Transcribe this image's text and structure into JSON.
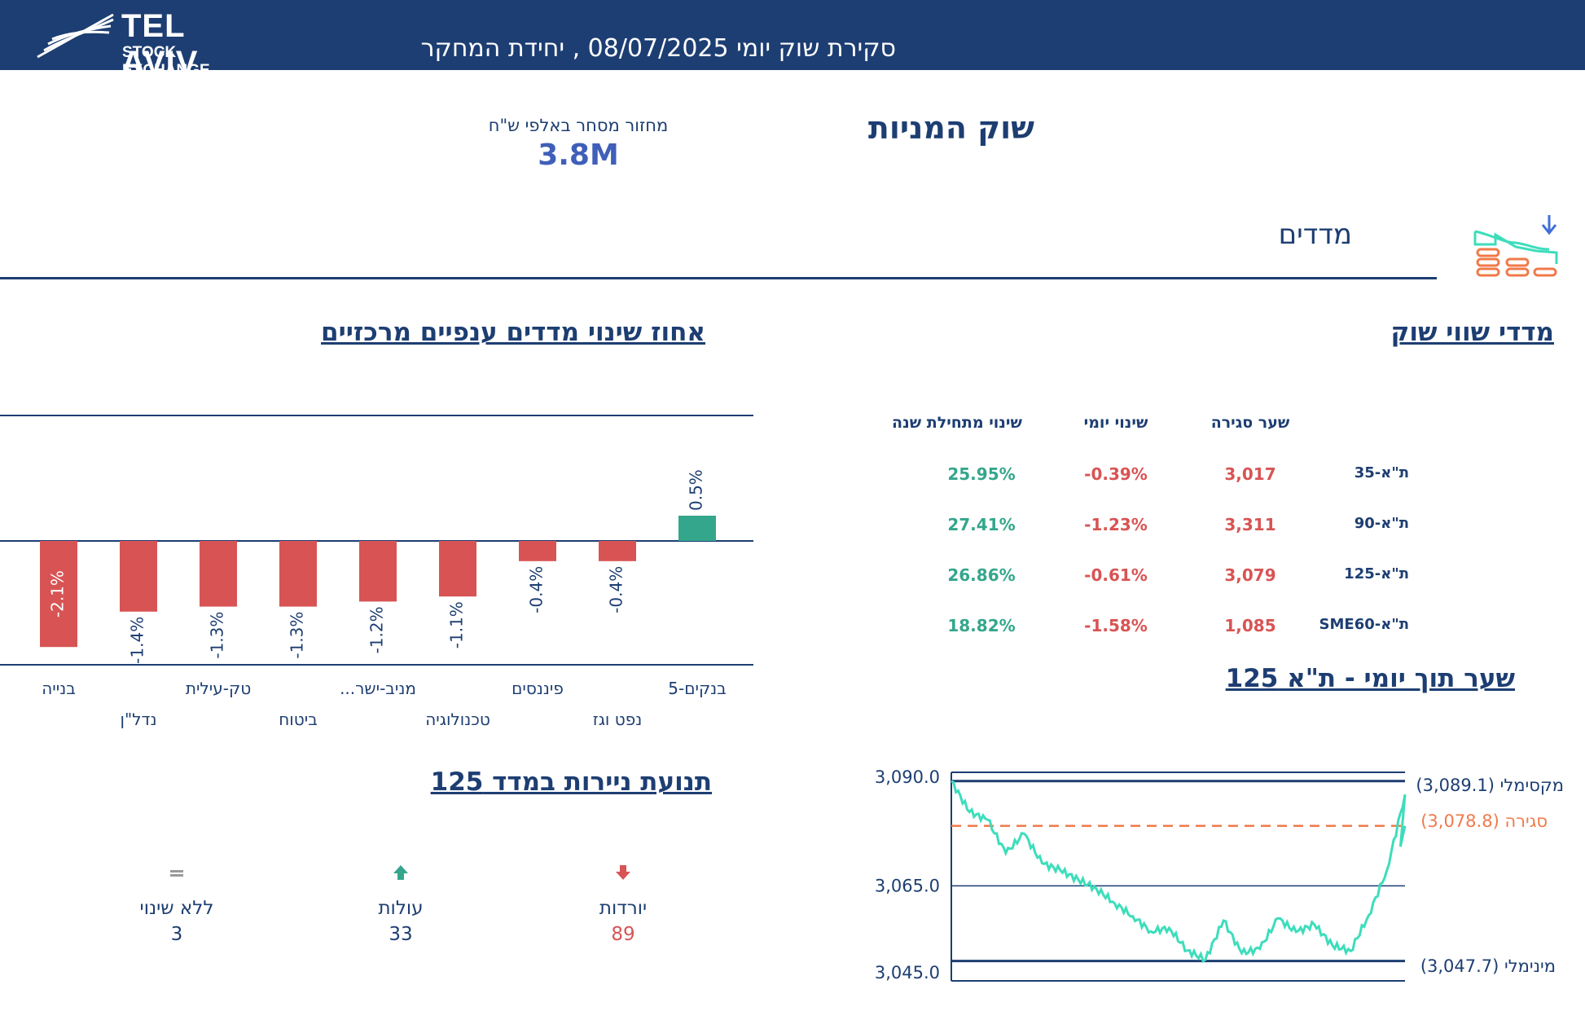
{
  "header": {
    "logo_line1": "TEL AVIV",
    "logo_line2": "STOCK EXCHANGE",
    "title": "סקירת שוק יומי 08/07/2025 , יחידת המחקר"
  },
  "market": {
    "title": "שוק המניות",
    "turnover_label": "מחזור מסחר באלפי ש\"ח",
    "turnover_value": "3.8M"
  },
  "indices_section": {
    "label": "מדדים"
  },
  "market_cap": {
    "title": "מדדי שווי שוק",
    "columns": [
      "שער סגירה",
      "שינוי יומי",
      "שינוי מתחילת שנה"
    ],
    "rows": [
      {
        "name": "ת\"א-35",
        "close": "3,017",
        "daily": "-0.39%",
        "ytd": "25.95%"
      },
      {
        "name": "ת\"א-90",
        "close": "3,311",
        "daily": "-1.23%",
        "ytd": "27.41%"
      },
      {
        "name": "ת\"א-125",
        "close": "3,079",
        "daily": "-0.61%",
        "ytd": "26.86%"
      },
      {
        "name": "ת\"א-SME60",
        "close": "1,085",
        "daily": "-1.58%",
        "ytd": "18.82%"
      }
    ]
  },
  "sector_chart": {
    "title": "אחוז שינוי מדדים ענפיים מרכזיים"
  },
  "intraday": {
    "title": "שער תוך יומי - ת\"א 125",
    "max_label": "מקסימלי (3,089.1)",
    "close_label": "סגירה (3,078.8)",
    "min_label": "מינימלי (3,047.7)"
  },
  "movement": {
    "title": "תנועת ניירות במדד 125",
    "down_label": "יורדות",
    "down_value": "89",
    "up_label": "עולות",
    "up_value": "33",
    "flat_label": "ללא שינוי",
    "flat_value": "3"
  },
  "colors": {
    "brand": "#1d3e72",
    "positive": "#34a68c",
    "negative": "#d85454",
    "close_line": "#f07a4a",
    "intraday_line": "#3dddbb"
  },
  "chart_data": [
    {
      "type": "bar",
      "title": "אחוז שינוי מדדים ענפיים מרכזיים",
      "categories": [
        "בנקים-5",
        "נפט וגז",
        "פיננסים",
        "טכנולוגיה",
        "מניב-ישר...",
        "ביטוח",
        "טק-עילית",
        "נדל\"ן",
        "בנייה"
      ],
      "values": [
        0.5,
        -0.4,
        -0.4,
        -1.1,
        -1.2,
        -1.3,
        -1.3,
        -1.4,
        -2.1
      ],
      "data_labels": [
        "0.5%",
        "-0.4%",
        "-0.4%",
        "-1.1%",
        "-1.2%",
        "-1.3%",
        "-1.3%",
        "-1.4%",
        "-2.1%"
      ],
      "ylim": [
        -2.1,
        1.3
      ]
    },
    {
      "type": "line",
      "title": "שער תוך יומי - ת\"א 125",
      "yticks": [
        "3,090.0",
        "3,065.0",
        "3,045.0"
      ],
      "ylim": [
        3045,
        3090
      ],
      "max": 3089.1,
      "close": 3078.8,
      "min": 3047.7,
      "x": [
        0,
        4,
        8,
        12,
        16,
        20,
        24,
        28,
        32,
        36,
        40,
        44,
        48,
        52,
        56,
        60,
        64,
        68,
        72,
        76,
        80,
        84,
        88,
        92,
        96,
        100
      ],
      "values": [
        3089.1,
        3082.0,
        3080.2,
        3072.5,
        3077.0,
        3070.2,
        3068.6,
        3066.4,
        3064.3,
        3061.0,
        3058.0,
        3054.5,
        3055.3,
        3050.1,
        3048.0,
        3057.0,
        3049.5,
        3050.5,
        3057.5,
        3054.4,
        3056.1,
        3051.3,
        3050.0,
        3058.2,
        3068.5,
        3086.0
      ]
    }
  ]
}
